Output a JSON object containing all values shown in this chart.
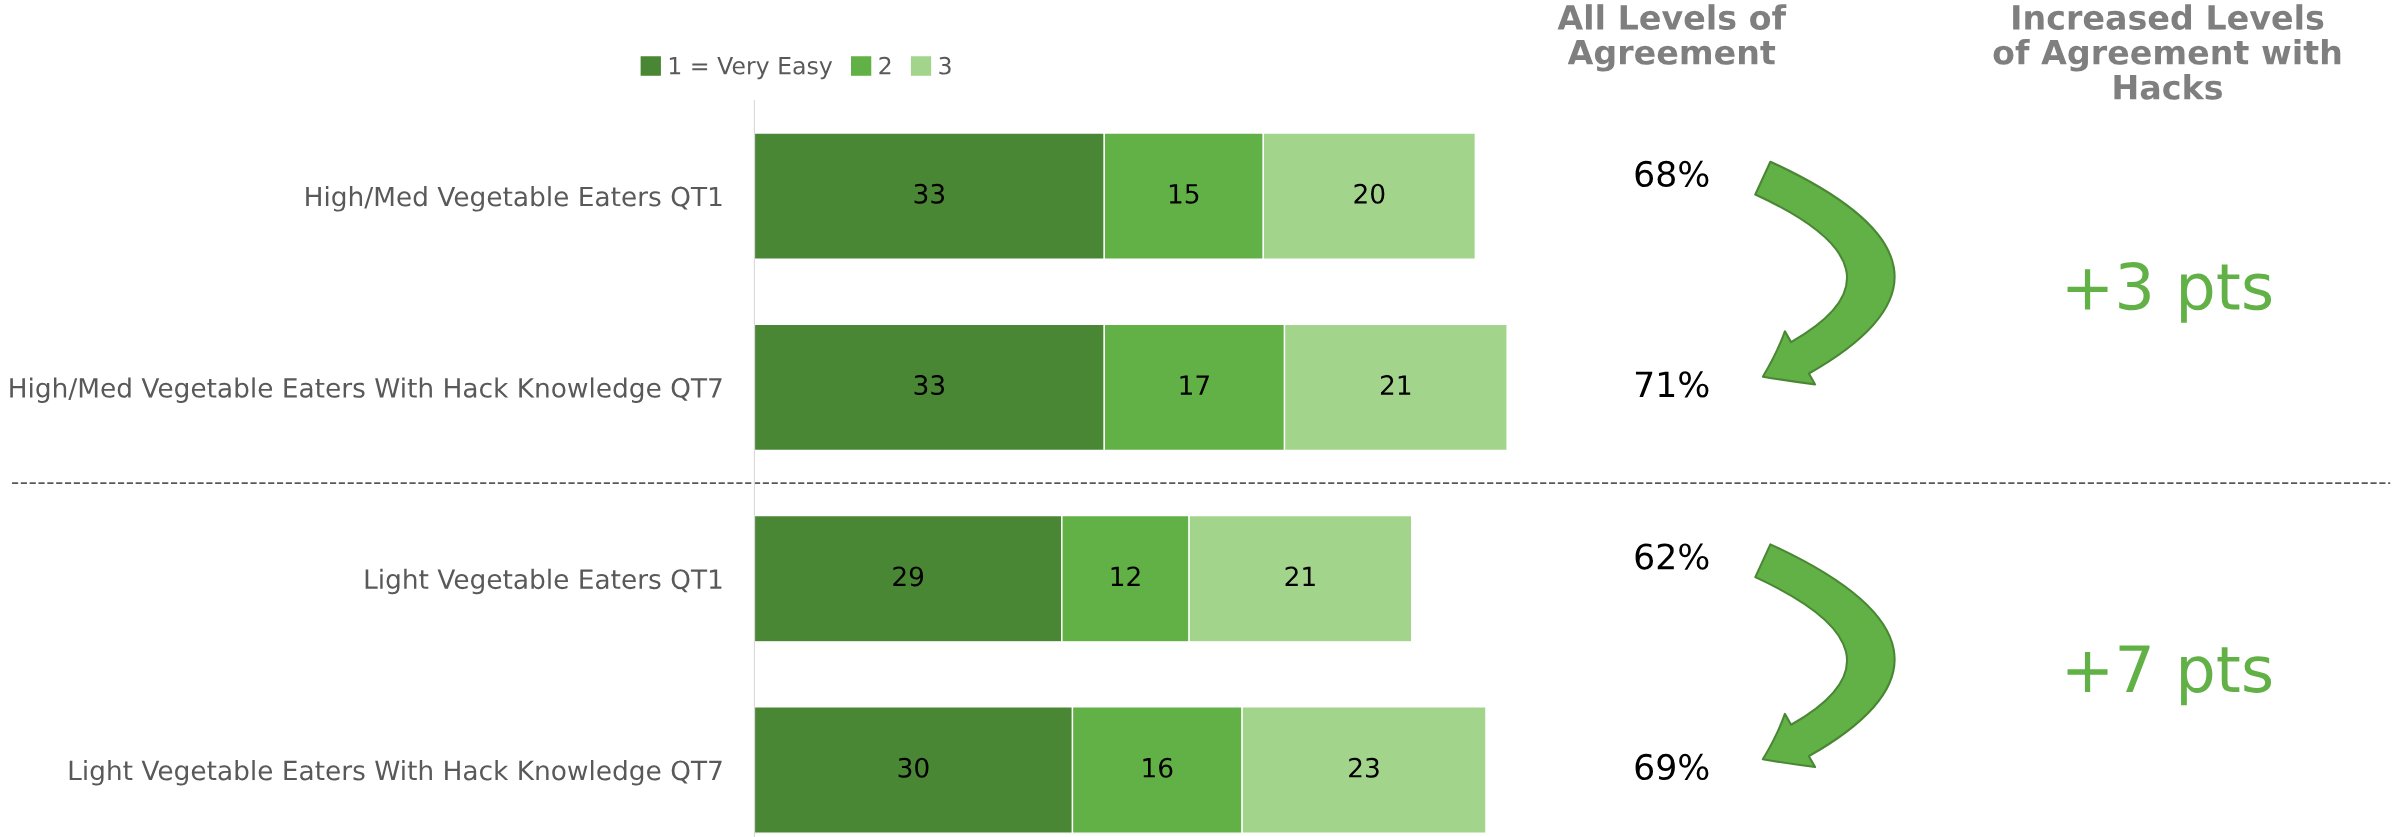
{
  "chart_data": {
    "type": "bar",
    "orientation": "horizontal",
    "stacked": true,
    "categories": [
      "High/Med Vegetable Eaters QT1",
      "High/Med Vegetable Eaters With Hack Knowledge QT7",
      "Light Vegetable Eaters QT1",
      "Light Vegetable Eaters With Hack Knowledge QT7"
    ],
    "series": [
      {
        "name": "1 = Very Easy",
        "color": "#4a8735",
        "values": [
          33,
          33,
          29,
          30
        ]
      },
      {
        "name": "2",
        "color": "#62b146",
        "values": [
          15,
          17,
          12,
          16
        ]
      },
      {
        "name": "3",
        "color": "#a3d48c",
        "values": [
          20,
          21,
          21,
          23
        ]
      }
    ],
    "data_labels": true,
    "legend": "top",
    "annotations": [
      "All Levels of\nAgreement",
      "Increased Levels\nof Agreement with\nHacks",
      "68%",
      "71%",
      "62%",
      "69%",
      "+3 pts",
      "+7 pts"
    ]
  }
}
